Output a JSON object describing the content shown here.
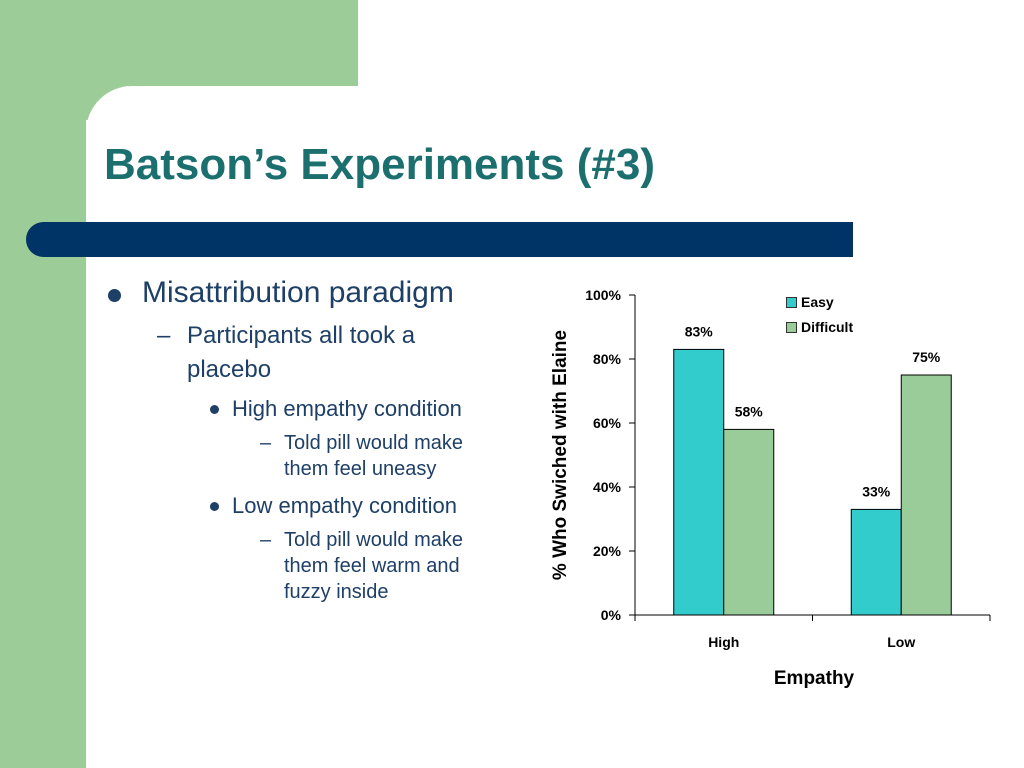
{
  "slide": {
    "title": "Batson’s Experiments (#3)",
    "bullets": {
      "l1": "Misattribution paradigm",
      "l2_line1": "Participants all took a",
      "l2_line2": "placebo",
      "l3a": "High empathy condition",
      "l4a_line1": "Told pill would make",
      "l4a_line2": "them feel uneasy",
      "l3b": "Low empathy condition",
      "l4b_line1": "Told pill would make",
      "l4b_line2": "them feel warm and",
      "l4b_line3": "fuzzy inside",
      "dash": "–"
    },
    "colors": {
      "background_green": "#9ccc98",
      "title_teal": "#1b6f6f",
      "title_bar_navy": "#003366",
      "bullet_text": "#1e3f66"
    }
  },
  "chart_data": {
    "type": "bar",
    "categories": [
      "High",
      "Low"
    ],
    "series": [
      {
        "name": "Easy",
        "values": [
          83,
          33
        ],
        "labels": [
          "83%",
          "33%"
        ],
        "color": "#33cccc"
      },
      {
        "name": "Difficult",
        "values": [
          58,
          75
        ],
        "labels": [
          "58%",
          "75%"
        ],
        "color": "#99cc99"
      }
    ],
    "xlabel": "Empathy",
    "ylabel": "% Who Swiched with Elaine",
    "ylim": [
      0,
      100
    ],
    "yticks": [
      0,
      20,
      40,
      60,
      80,
      100
    ],
    "ytick_labels": [
      "0%",
      "20%",
      "40%",
      "60%",
      "80%",
      "100%"
    ],
    "grid": false,
    "legend_position": "top-right"
  }
}
